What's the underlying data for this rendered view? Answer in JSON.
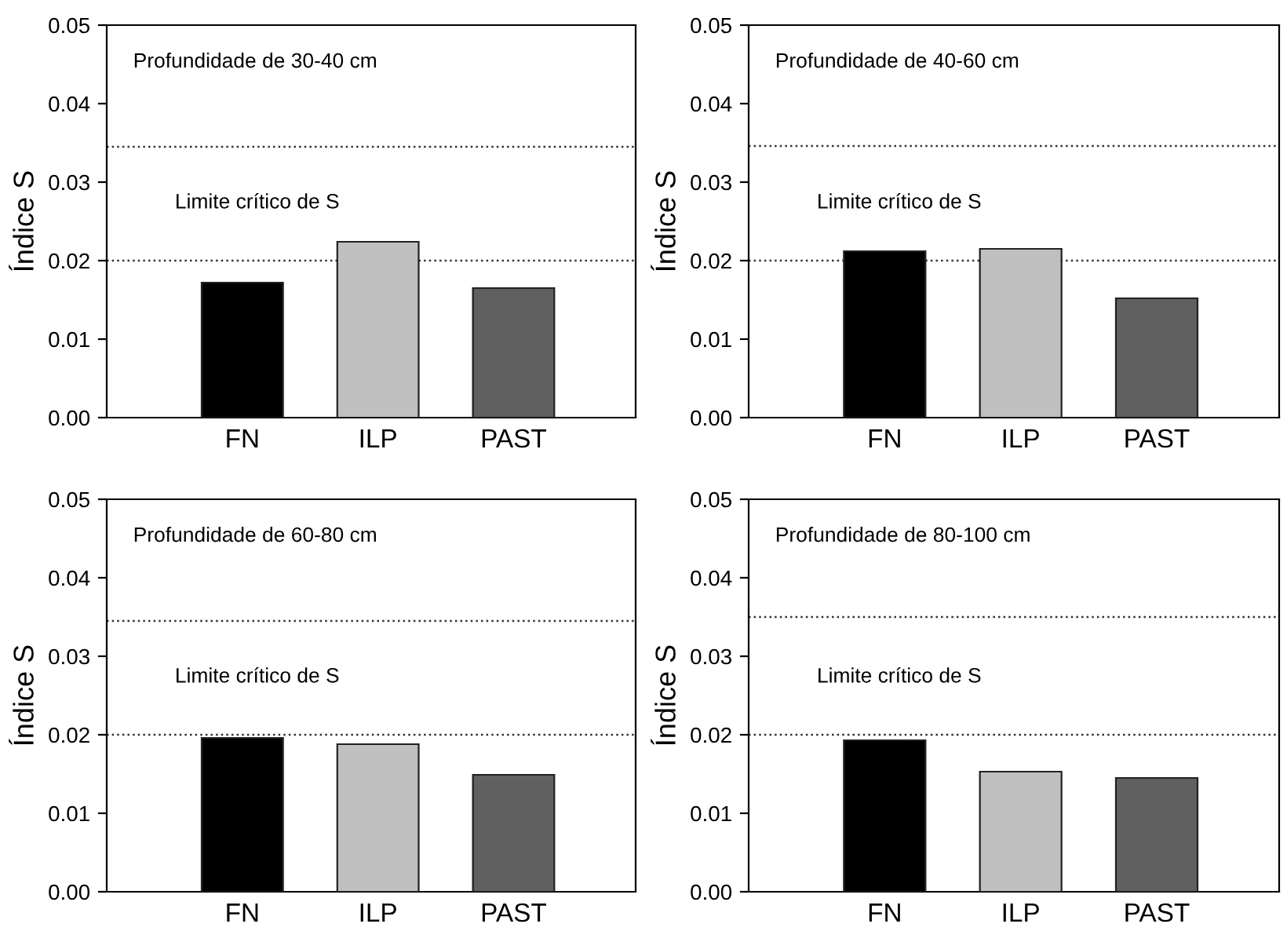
{
  "chart_data": [
    {
      "type": "bar",
      "annotations": [
        "Profundidade de 30-40 cm"
      ],
      "ylabel": "Índice S",
      "categories": [
        "FN",
        "ILP",
        "PAST"
      ],
      "values": [
        0.0172,
        0.0224,
        0.0165
      ],
      "colors": [
        "#000000",
        "#c0c0c0",
        "#606060"
      ],
      "ylim": [
        0,
        0.05
      ],
      "yticks": [
        {
          "value": 0,
          "label": "0.00"
        },
        {
          "value": 0.01,
          "label": "0.01"
        },
        {
          "value": 0.02,
          "label": "0.02"
        },
        {
          "value": 0.03,
          "label": "0.03"
        },
        {
          "value": 0.04,
          "label": "0.04"
        },
        {
          "value": 0.05,
          "label": "0.05"
        }
      ],
      "ref_lines": [
        {
          "axis": "y",
          "value": 0.0345,
          "line_style": "dotted"
        },
        {
          "axis": "y",
          "value": 0.02,
          "label": "Limite crítico de S",
          "line_style": "dotted"
        }
      ],
      "grid": false
    },
    {
      "type": "bar",
      "annotations": [
        "Profundidade de 40-60 cm"
      ],
      "ylabel": "Índice S",
      "categories": [
        "FN",
        "ILP",
        "PAST"
      ],
      "values": [
        0.0212,
        0.0215,
        0.0152
      ],
      "colors": [
        "#000000",
        "#c0c0c0",
        "#606060"
      ],
      "ylim": [
        0,
        0.05
      ],
      "yticks": [
        {
          "value": 0,
          "label": "0.00"
        },
        {
          "value": 0.01,
          "label": "0.01"
        },
        {
          "value": 0.02,
          "label": "0.02"
        },
        {
          "value": 0.03,
          "label": "0.03"
        },
        {
          "value": 0.04,
          "label": "0.04"
        },
        {
          "value": 0.05,
          "label": "0.05"
        }
      ],
      "ref_lines": [
        {
          "axis": "y",
          "value": 0.0346,
          "line_style": "dotted"
        },
        {
          "axis": "y",
          "value": 0.02,
          "label": "Limite crítico de S",
          "line_style": "dotted"
        }
      ],
      "grid": false
    },
    {
      "type": "bar",
      "annotations": [
        "Profundidade de 60-80 cm"
      ],
      "ylabel": "Índice S",
      "categories": [
        "FN",
        "ILP",
        "PAST"
      ],
      "values": [
        0.0196,
        0.0188,
        0.0149
      ],
      "colors": [
        "#000000",
        "#c0c0c0",
        "#606060"
      ],
      "ylim": [
        0,
        0.05
      ],
      "yticks": [
        {
          "value": 0,
          "label": "0.00"
        },
        {
          "value": 0.01,
          "label": "0.01"
        },
        {
          "value": 0.02,
          "label": "0.02"
        },
        {
          "value": 0.03,
          "label": "0.03"
        },
        {
          "value": 0.04,
          "label": "0.04"
        },
        {
          "value": 0.05,
          "label": "0.05"
        }
      ],
      "ref_lines": [
        {
          "axis": "y",
          "value": 0.0345,
          "line_style": "dotted"
        },
        {
          "axis": "y",
          "value": 0.02,
          "label": "Limite crítico de S",
          "line_style": "dotted"
        }
      ],
      "grid": false
    },
    {
      "type": "bar",
      "annotations": [
        "Profundidade de 80-100 cm"
      ],
      "ylabel": "Índice S",
      "categories": [
        "FN",
        "ILP",
        "PAST"
      ],
      "values": [
        0.0193,
        0.0153,
        0.0145
      ],
      "colors": [
        "#000000",
        "#c0c0c0",
        "#606060"
      ],
      "ylim": [
        0,
        0.05
      ],
      "yticks": [
        {
          "value": 0,
          "label": "0.00"
        },
        {
          "value": 0.01,
          "label": "0.01"
        },
        {
          "value": 0.02,
          "label": "0.02"
        },
        {
          "value": 0.03,
          "label": "0.03"
        },
        {
          "value": 0.04,
          "label": "0.04"
        },
        {
          "value": 0.05,
          "label": "0.05"
        }
      ],
      "ref_lines": [
        {
          "axis": "y",
          "value": 0.035,
          "line_style": "dotted"
        },
        {
          "axis": "y",
          "value": 0.02,
          "label": "Limite crítico de S",
          "line_style": "dotted"
        }
      ],
      "grid": false
    }
  ]
}
